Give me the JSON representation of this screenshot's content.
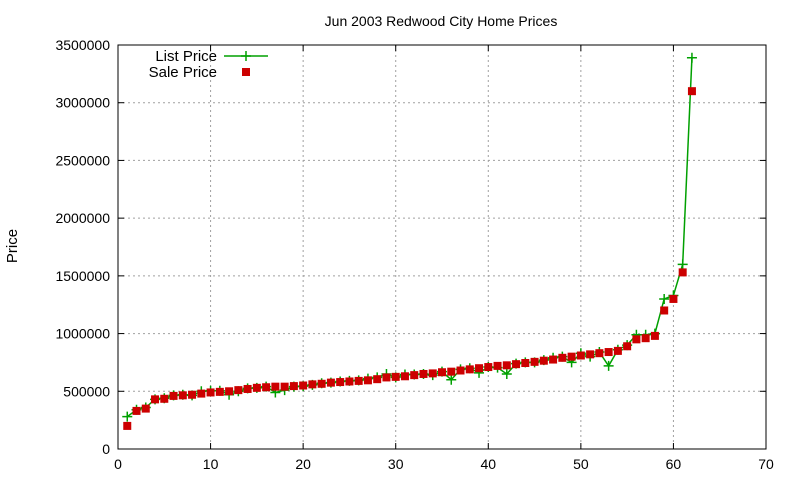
{
  "chart_data": {
    "type": "line",
    "title": "Jun 2003 Redwood City Home Prices",
    "xlabel": "",
    "ylabel": "Price",
    "xlim": [
      0,
      70
    ],
    "ylim": [
      0,
      3500000
    ],
    "xticks": [
      "0",
      "10",
      "20",
      "30",
      "40",
      "50",
      "60",
      "70"
    ],
    "yticks": [
      "0",
      "500000",
      "1000000",
      "1500000",
      "2000000",
      "2500000",
      "3000000",
      "3500000"
    ],
    "grid": true,
    "legend_position": "top-left",
    "series": [
      {
        "name": "List Price",
        "style": "line+cross",
        "color": "#00a000",
        "x": [
          1,
          2,
          3,
          4,
          5,
          6,
          7,
          8,
          9,
          10,
          11,
          12,
          13,
          14,
          15,
          16,
          17,
          18,
          19,
          20,
          21,
          22,
          23,
          24,
          25,
          26,
          27,
          28,
          29,
          30,
          31,
          32,
          33,
          34,
          35,
          36,
          37,
          38,
          39,
          40,
          41,
          42,
          43,
          44,
          45,
          46,
          47,
          48,
          49,
          50,
          51,
          52,
          53,
          54,
          55,
          56,
          57,
          58,
          59,
          60,
          61,
          62
        ],
        "y": [
          280000,
          340000,
          360000,
          430000,
          440000,
          465000,
          470000,
          465000,
          500000,
          505000,
          505000,
          470000,
          500000,
          525000,
          530000,
          540000,
          490000,
          510000,
          540000,
          545000,
          555000,
          570000,
          575000,
          585000,
          590000,
          595000,
          610000,
          620000,
          650000,
          620000,
          645000,
          645000,
          650000,
          640000,
          670000,
          600000,
          690000,
          700000,
          660000,
          710000,
          705000,
          650000,
          740000,
          750000,
          750000,
          770000,
          790000,
          800000,
          750000,
          830000,
          800000,
          840000,
          720000,
          860000,
          900000,
          990000,
          990000,
          1000000,
          1300000,
          1330000,
          1600000,
          3390000
        ]
      },
      {
        "name": "Sale Price",
        "style": "square",
        "color": "#cc0000",
        "x": [
          1,
          2,
          3,
          4,
          5,
          6,
          7,
          8,
          9,
          10,
          11,
          12,
          13,
          14,
          15,
          16,
          17,
          18,
          19,
          20,
          21,
          22,
          23,
          24,
          25,
          26,
          27,
          28,
          29,
          30,
          31,
          32,
          33,
          34,
          35,
          36,
          37,
          38,
          39,
          40,
          41,
          42,
          43,
          44,
          45,
          46,
          47,
          48,
          49,
          50,
          51,
          52,
          53,
          54,
          55,
          56,
          57,
          58,
          59,
          60,
          61,
          62
        ],
        "y": [
          200000,
          330000,
          350000,
          430000,
          435000,
          460000,
          465000,
          470000,
          480000,
          490000,
          495000,
          500000,
          510000,
          520000,
          530000,
          535000,
          540000,
          540000,
          545000,
          550000,
          560000,
          565000,
          575000,
          580000,
          585000,
          590000,
          595000,
          605000,
          620000,
          625000,
          630000,
          640000,
          650000,
          655000,
          665000,
          670000,
          680000,
          690000,
          700000,
          710000,
          720000,
          725000,
          735000,
          745000,
          755000,
          765000,
          775000,
          790000,
          800000,
          810000,
          820000,
          830000,
          840000,
          850000,
          890000,
          950000,
          960000,
          980000,
          1200000,
          1300000,
          1530000,
          3100000
        ]
      }
    ]
  }
}
